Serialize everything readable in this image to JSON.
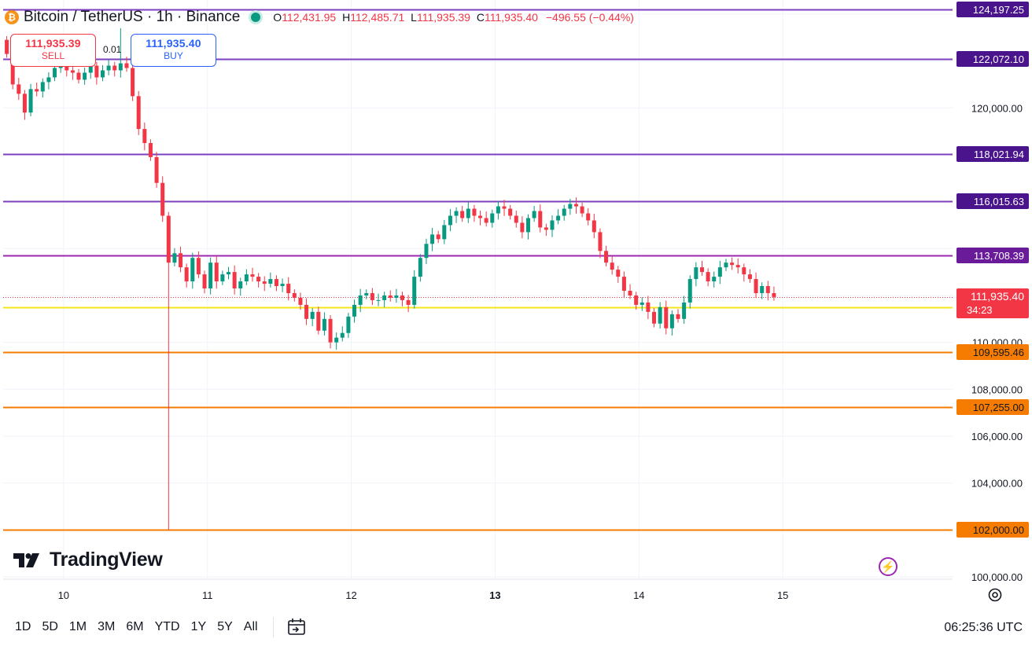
{
  "header": {
    "symbol": "Bitcoin / TetherUS · 1h · Binance",
    "coin_icon": "bitcoin-icon",
    "open_label": "O",
    "open": "112,431.95",
    "high_label": "H",
    "high": "112,485.71",
    "low_label": "L",
    "low": "111,935.39",
    "close_label": "C",
    "close": "111,935.40",
    "change": "−496.55 (−0.44%)"
  },
  "trade": {
    "sell_price": "111,935.39",
    "sell_label": "SELL",
    "quantity": "0.01",
    "buy_price": "111,935.40",
    "buy_label": "BUY"
  },
  "branding": {
    "logo_text": "TradingView"
  },
  "bottom_bar": {
    "ranges": [
      "1D",
      "5D",
      "1M",
      "3M",
      "6M",
      "YTD",
      "1Y",
      "5Y",
      "All"
    ],
    "time": "06:25:36 UTC"
  },
  "colors": {
    "up": "#089981",
    "down": "#f23645",
    "purple_line": "#7e3fbf",
    "orange_line": "#f57c00",
    "yellow_line": "#f5e51b",
    "text": "#131722",
    "grid": "#f0f3fa"
  },
  "chart_data": {
    "type": "candlestick",
    "symbol": "BTC/USDT",
    "interval": "1h",
    "y_axis_ticks": [
      100000,
      102000,
      104000,
      106000,
      108000,
      110000,
      112000,
      114000,
      116000,
      118000,
      120000,
      122000,
      124000
    ],
    "y_axis_tick_labels": [
      "100,000.00",
      "",
      "104,000.00",
      "106,000.00",
      "108,000.00",
      "110,000.00",
      "",
      "",
      "",
      "",
      "120,000.00",
      "",
      ""
    ],
    "ylim": [
      99900,
      124600
    ],
    "x_axis_labels": [
      {
        "label": "10",
        "day": 10,
        "bold": false
      },
      {
        "label": "11",
        "day": 11,
        "bold": false
      },
      {
        "label": "12",
        "day": 12,
        "bold": false
      },
      {
        "label": "13",
        "day": 13,
        "bold": true
      },
      {
        "label": "14",
        "day": 14,
        "bold": false
      },
      {
        "label": "15",
        "day": 15,
        "bold": false
      }
    ],
    "xlim": [
      9.58,
      16.18
    ],
    "horizontal_levels": [
      {
        "value": 124197.25,
        "label": "124,197.25",
        "color": "#7e3fbf",
        "label_bg": "#4a148c",
        "label_color": "#ffffff"
      },
      {
        "value": 122072.1,
        "label": "122,072.10",
        "color": "#7e3fbf",
        "label_bg": "#4a148c",
        "label_color": "#ffffff"
      },
      {
        "value": 118021.94,
        "label": "118,021.94",
        "color": "#7e3fbf",
        "label_bg": "#4a148c",
        "label_color": "#ffffff"
      },
      {
        "value": 116015.63,
        "label": "116,015.63",
        "color": "#7e3fbf",
        "label_bg": "#4a148c",
        "label_color": "#ffffff"
      },
      {
        "value": 113708.39,
        "label": "113,708.39",
        "color": "#9c27b0",
        "label_bg": "#6a1b9a",
        "label_color": "#ffffff"
      },
      {
        "value": 111501.45,
        "label": "111,501.45",
        "color": "#f5e51b",
        "label_bg": "#ffeb3b",
        "label_color": "#131722"
      },
      {
        "value": 109595.46,
        "label": "109,595.46",
        "color": "#f57c00",
        "label_bg": "#f57c00",
        "label_color": "#131722"
      },
      {
        "value": 107255.0,
        "label": "107,255.00",
        "color": "#f57c00",
        "label_bg": "#f57c00",
        "label_color": "#131722"
      },
      {
        "value": 102000.0,
        "label": "102,000.00",
        "color": "#f57c00",
        "label_bg": "#f57c00",
        "label_color": "#131722"
      }
    ],
    "last_price": {
      "value": 111935.4,
      "label": "111,935.40",
      "countdown": "34:23",
      "color": "#f23645"
    },
    "candle_closes": [
      122300,
      121000,
      120600,
      119800,
      120800,
      120700,
      121100,
      121300,
      121700,
      121900,
      121600,
      121500,
      121200,
      121500,
      121800,
      121300,
      121600,
      121800,
      121600,
      121900,
      121700,
      120500,
      119100,
      118500,
      117900,
      116800,
      115400,
      113400,
      113800,
      113200,
      112600,
      113600,
      112900,
      112300,
      113400,
      112600,
      112900,
      113000,
      112300,
      112600,
      112900,
      112800,
      112600,
      112500,
      112700,
      112400,
      112500,
      112100,
      111900,
      111600,
      111000,
      111300,
      110500,
      111000,
      110000,
      110200,
      110400,
      111100,
      111600,
      112000,
      112100,
      111800,
      111800,
      112000,
      111900,
      112000,
      111800,
      111600,
      112800,
      113600,
      114200,
      114600,
      114400,
      115000,
      115400,
      115600,
      115300,
      115700,
      115400,
      115300,
      115100,
      115500,
      115800,
      115700,
      115400,
      115100,
      114700,
      115300,
      115600,
      114900,
      114800,
      115200,
      115400,
      115700,
      115900,
      115800,
      115500,
      115200,
      114700,
      113900,
      113400,
      113100,
      112800,
      112200,
      112000,
      111600,
      111700,
      111300,
      110800,
      111500,
      110600,
      111200,
      111000,
      111700,
      112700,
      113200,
      113000,
      112600,
      112800,
      113200,
      113400,
      113300,
      113200,
      112900,
      112700,
      112100,
      112400,
      112100,
      111935.4
    ]
  }
}
